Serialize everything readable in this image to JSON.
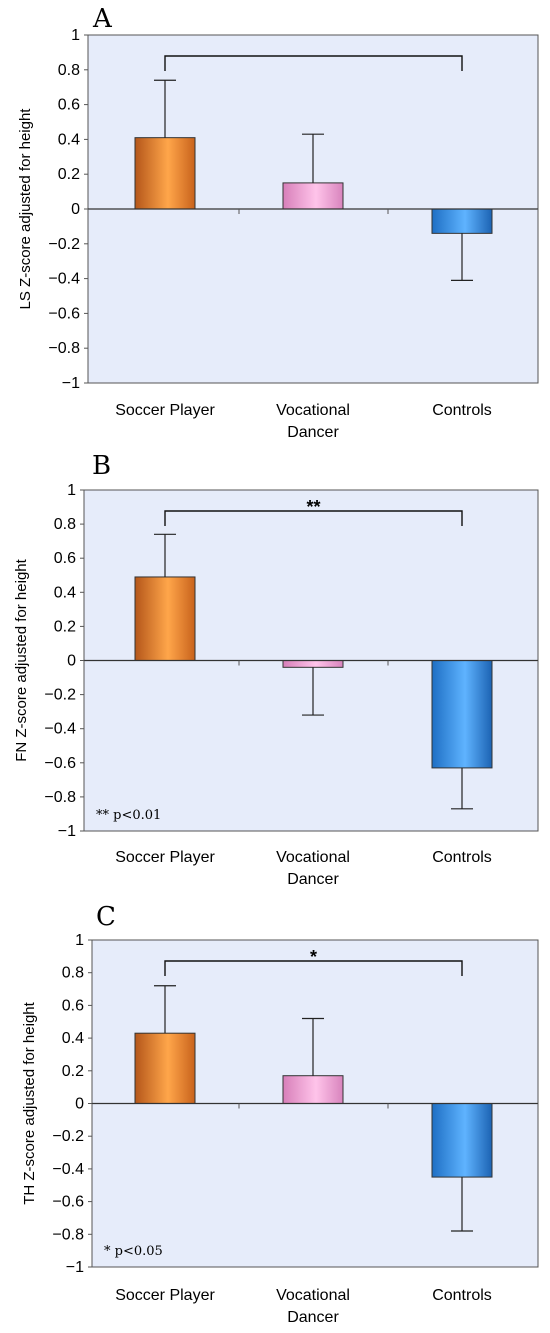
{
  "chart_data": [
    {
      "type": "bar",
      "panel_label": "A",
      "categories": [
        "Soccer Player",
        "Vocational Dancer",
        "Controls"
      ],
      "category_lines": [
        [
          "Soccer Player"
        ],
        [
          "Vocational",
          "Dancer"
        ],
        [
          "Controls"
        ]
      ],
      "values": [
        0.41,
        0.15,
        -0.14
      ],
      "error_plus": [
        0.33,
        0.28,
        0.0
      ],
      "error_minus": [
        0.0,
        0.0,
        0.27
      ],
      "ylabel": "LS Z-score adjusted for height",
      "ylim": [
        -1,
        1
      ],
      "yticks": [
        "1",
        "0.8",
        "0.6",
        "0.4",
        "0.2",
        "0",
        "−0.2",
        "−0.4",
        "−0.6",
        "−0.8",
        "−1"
      ],
      "significance": {
        "from": 0,
        "to": 2,
        "marker": ""
      },
      "note": "",
      "bar_colors": [
        "#f08a2e",
        "#ef9fd2",
        "#3a93e8"
      ],
      "background": "#e6ecfa"
    },
    {
      "type": "bar",
      "panel_label": "B",
      "categories": [
        "Soccer Player",
        "Vocational Dancer",
        "Controls"
      ],
      "category_lines": [
        [
          "Soccer Player"
        ],
        [
          "Vocational",
          "Dancer"
        ],
        [
          "Controls"
        ]
      ],
      "values": [
        0.49,
        -0.04,
        -0.63
      ],
      "error_plus": [
        0.25,
        0.0,
        0.0
      ],
      "error_minus": [
        0.0,
        0.28,
        0.24
      ],
      "ylabel": "FN Z-score adjusted for height",
      "ylim": [
        -1,
        1
      ],
      "yticks": [
        "1",
        "0.8",
        "0.6",
        "0.4",
        "0.2",
        "0",
        "−0.2",
        "−0.4",
        "−0.6",
        "−0.8",
        "−1"
      ],
      "significance": {
        "from": 0,
        "to": 2,
        "marker": "**"
      },
      "note": "** p<0.01",
      "bar_colors": [
        "#f08a2e",
        "#ef9fd2",
        "#3a93e8"
      ],
      "background": "#e6ecfa"
    },
    {
      "type": "bar",
      "panel_label": "C",
      "categories": [
        "Soccer Player",
        "Vocational Dancer",
        "Controls"
      ],
      "category_lines": [
        [
          "Soccer Player"
        ],
        [
          "Vocational",
          "Dancer"
        ],
        [
          "Controls"
        ]
      ],
      "values": [
        0.43,
        0.17,
        -0.45
      ],
      "error_plus": [
        0.29,
        0.35,
        0.0
      ],
      "error_minus": [
        0.0,
        0.0,
        0.33
      ],
      "ylabel": "TH Z-score adjusted for height",
      "ylim": [
        -1,
        1
      ],
      "yticks": [
        "1",
        "0.8",
        "0.6",
        "0.4",
        "0.2",
        "0",
        "−0.2",
        "−0.4",
        "−0.6",
        "−0.8",
        "−1"
      ],
      "significance": {
        "from": 0,
        "to": 2,
        "marker": "*"
      },
      "note": "* p<0.05",
      "bar_colors": [
        "#f08a2e",
        "#ef9fd2",
        "#3a93e8"
      ],
      "background": "#e6ecfa"
    }
  ]
}
